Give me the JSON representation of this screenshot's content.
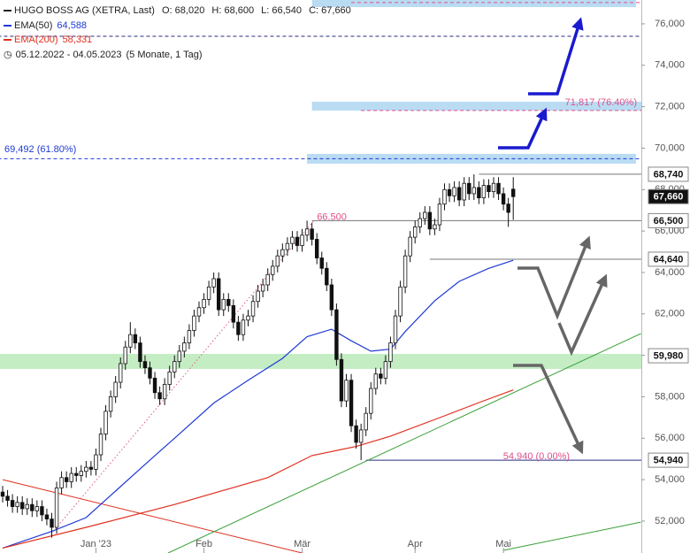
{
  "chart_data": {
    "type": "candlestick",
    "title": "HUGO BOSS AG (XETRA, Last)",
    "quote": [
      {
        "value": 68020,
        "label": "O: 68,020"
      },
      {
        "value": 68600,
        "label": "H: 68,600"
      },
      {
        "value": 66540,
        "label": "L: 66,540"
      },
      {
        "value": 67660,
        "label": "C: 67,660"
      }
    ],
    "period": "05.12.2022 - 04.05.2023",
    "period_note": "(5 Monate, 1 Tag)",
    "categories": [
      null,
      null,
      null,
      null,
      null,
      null,
      null,
      null,
      null,
      null,
      null,
      null,
      null,
      null,
      null,
      null,
      null,
      null,
      null,
      "Jan '23",
      null,
      null,
      null,
      null,
      null,
      null,
      null,
      null,
      null,
      null,
      null,
      null,
      null,
      null,
      null,
      null,
      null,
      null,
      null,
      null,
      null,
      "Feb",
      null,
      null,
      null,
      null,
      null,
      null,
      null,
      null,
      null,
      null,
      null,
      null,
      null,
      null,
      null,
      null,
      null,
      null,
      null,
      "Mär",
      null,
      null,
      null,
      null,
      null,
      null,
      null,
      null,
      null,
      null,
      null,
      null,
      null,
      null,
      null,
      null,
      null,
      null,
      null,
      null,
      null,
      null,
      "Apr",
      null,
      null,
      null,
      null,
      null,
      null,
      null,
      null,
      null,
      null,
      null,
      null,
      null,
      null,
      null,
      null,
      null,
      "Mai",
      null,
      null
    ],
    "open": [
      53400,
      53200,
      53000,
      52700,
      52900,
      52600,
      52800,
      52500,
      52700,
      52300,
      52100,
      51700,
      53600,
      54100,
      53900,
      54300,
      54200,
      54400,
      54600,
      54500,
      55200,
      56200,
      57300,
      58000,
      58700,
      59600,
      60400,
      61000,
      60600,
      59700,
      59400,
      58900,
      58200,
      57900,
      58600,
      59200,
      59700,
      60200,
      60600,
      61200,
      61900,
      62300,
      62700,
      63300,
      63700,
      62200,
      62700,
      62400,
      61600,
      61000,
      61700,
      61900,
      62600,
      63100,
      63400,
      63900,
      64300,
      64800,
      65100,
      65400,
      65700,
      65300,
      65800,
      66100,
      65600,
      64700,
      64200,
      63400,
      62200,
      59800,
      57800,
      58800,
      56600,
      55800,
      56400,
      57200,
      58400,
      59100,
      58900,
      59700,
      60600,
      61900,
      63300,
      64800,
      65700,
      66200,
      66600,
      66900,
      66100,
      66300,
      67300,
      68000,
      67700,
      68100,
      67500,
      68300,
      67800,
      68100,
      67600,
      68200,
      67900,
      68300,
      67800,
      67300,
      68020
    ],
    "high": [
      53700,
      53500,
      53300,
      53200,
      53200,
      53100,
      53100,
      53000,
      53000,
      52600,
      52400,
      53900,
      54400,
      54400,
      54600,
      54600,
      54700,
      54900,
      54900,
      55500,
      56500,
      57600,
      58300,
      59000,
      59900,
      60700,
      61600,
      61300,
      60900,
      60000,
      59700,
      59200,
      58500,
      58900,
      59500,
      60000,
      60500,
      60900,
      61500,
      62200,
      62600,
      63000,
      63600,
      64000,
      64000,
      63000,
      63000,
      62700,
      61900,
      62000,
      62200,
      62900,
      63400,
      63700,
      64200,
      64600,
      65100,
      65400,
      65700,
      66000,
      66000,
      66100,
      66500,
      66400,
      65900,
      65000,
      64500,
      63700,
      62500,
      60100,
      59100,
      59100,
      56900,
      56700,
      57500,
      58700,
      59400,
      59400,
      60000,
      60900,
      62200,
      63600,
      65100,
      66000,
      66500,
      66900,
      67200,
      67200,
      66600,
      67600,
      68300,
      68300,
      68400,
      68400,
      68600,
      68600,
      68740,
      68400,
      68500,
      68500,
      68600,
      68600,
      68100,
      67600,
      68600
    ],
    "low": [
      52900,
      52700,
      52400,
      52400,
      52300,
      52300,
      52200,
      52200,
      52000,
      51800,
      51200,
      51400,
      53300,
      53600,
      53600,
      53900,
      53900,
      54100,
      54200,
      54200,
      54900,
      55900,
      57000,
      57700,
      58400,
      59300,
      60100,
      60300,
      59400,
      59100,
      58600,
      57900,
      57600,
      57600,
      58300,
      58900,
      59400,
      59900,
      60300,
      60900,
      61600,
      62000,
      62400,
      63000,
      61900,
      61900,
      62100,
      61300,
      60700,
      60700,
      61400,
      61600,
      62300,
      62800,
      63100,
      63600,
      64000,
      64500,
      64800,
      65100,
      65000,
      65000,
      65500,
      65300,
      64400,
      63900,
      63100,
      61900,
      59500,
      57500,
      57500,
      56300,
      55500,
      54940,
      56100,
      56900,
      58100,
      58600,
      58600,
      59400,
      60300,
      61600,
      63000,
      64500,
      65400,
      65900,
      66300,
      65800,
      65800,
      66000,
      67000,
      67400,
      67400,
      67200,
      67200,
      67500,
      67500,
      67300,
      67300,
      67600,
      67600,
      67500,
      67000,
      66200,
      66540
    ],
    "close": [
      53200,
      53000,
      52700,
      52900,
      52600,
      52800,
      52500,
      52700,
      52300,
      52100,
      51700,
      53600,
      54100,
      53900,
      54300,
      54200,
      54400,
      54600,
      54500,
      55200,
      56200,
      57300,
      58000,
      58700,
      59600,
      60400,
      61000,
      60600,
      59700,
      59400,
      58900,
      58200,
      57900,
      58600,
      59200,
      59700,
      60200,
      60600,
      61200,
      61900,
      62300,
      62700,
      63300,
      63700,
      62200,
      62700,
      62400,
      61600,
      61000,
      61700,
      61900,
      62600,
      63100,
      63400,
      63900,
      64300,
      64800,
      65100,
      65400,
      65700,
      65300,
      65800,
      66100,
      65600,
      64700,
      64200,
      63400,
      62200,
      59800,
      57800,
      58800,
      56600,
      55800,
      56400,
      57200,
      58400,
      59100,
      58900,
      59700,
      60600,
      61900,
      63300,
      64800,
      65700,
      66200,
      66600,
      66900,
      66100,
      66300,
      67300,
      68000,
      67700,
      68100,
      67500,
      68300,
      67800,
      68100,
      67600,
      68200,
      67900,
      68300,
      67800,
      67300,
      66900,
      67660
    ],
    "series": [
      {
        "name": "EMA(50)",
        "color": "#1f3ad6",
        "last": {
          "value": 64588,
          "label": "64,588"
        },
        "x": [
          0,
          10,
          17,
          23,
          30,
          35,
          43,
          50,
          57,
          62,
          67,
          71,
          75,
          79,
          82,
          88,
          93,
          99,
          104
        ],
        "values": [
          50700,
          51500,
          52170,
          53450,
          54950,
          56000,
          57700,
          58800,
          59850,
          60900,
          61260,
          60700,
          60200,
          60300,
          61150,
          62630,
          63570,
          64200,
          64588
        ]
      },
      {
        "name": "EMA(200)",
        "color": "#e0301e",
        "last": {
          "value": 58331,
          "label": "58,331"
        },
        "x": [
          0,
          17,
          35,
          54,
          63,
          72,
          79,
          90,
          97,
          104
        ],
        "values": [
          50700,
          51700,
          52800,
          54100,
          55160,
          55600,
          56100,
          57080,
          57720,
          58331
        ]
      }
    ],
    "ylim": [
      50460,
      77150
    ],
    "yticks": [
      {
        "value": 52000,
        "label": "52,000"
      },
      {
        "value": 54000,
        "label": "54,000"
      },
      {
        "value": 56000,
        "label": "56,000"
      },
      {
        "value": 58000,
        "label": "58,000"
      },
      {
        "value": 60000,
        "label": "60,000"
      },
      {
        "value": 62000,
        "label": "62,000"
      },
      {
        "value": 64000,
        "label": "64,000"
      },
      {
        "value": 66000,
        "label": "66,000"
      },
      {
        "value": 68000,
        "label": "68,000"
      },
      {
        "value": 70000,
        "label": "70,000"
      },
      {
        "value": 72000,
        "label": "72,000"
      },
      {
        "value": 74000,
        "label": "74,000"
      },
      {
        "value": 76000,
        "label": "76,000"
      }
    ],
    "zones": [
      {
        "from": 69252,
        "to": 69722,
        "start": 62,
        "end": 129,
        "color": "#b9dcf3"
      },
      {
        "from": 71815,
        "to": 72242,
        "start": 63,
        "end": 131,
        "color": "#b9dcf3"
      },
      {
        "from": 76810,
        "to": 77300,
        "start": 63,
        "end": 129,
        "color": "#b9dcf3"
      },
      {
        "from": 59343,
        "to": 60069,
        "start": -1,
        "end": 131,
        "color": "#c4edc4"
      }
    ],
    "fib_lines": [
      {
        "value": 69492,
        "label": "69,492 (61.80%)",
        "color": "#1f3ad6",
        "start": -1
      },
      {
        "value": 71817,
        "label": "71,817 (76.40%)",
        "color": "#e0508a",
        "start": 73
      },
      {
        "value": 75400,
        "color": "#2a2a80",
        "start": -1
      },
      {
        "value": 77025,
        "color": "#e0508a",
        "start": 71
      }
    ],
    "annotations": [
      {
        "text": "66.500",
        "value": 66500,
        "x": 64,
        "color": "#e0508a"
      },
      {
        "text": "54,940 (0.00%)",
        "value": 54940,
        "x": 115.5,
        "color": "#e0508a"
      }
    ],
    "price_labels": [
      {
        "value": 68740,
        "label": "68,740",
        "from": 97
      },
      {
        "value": 67660,
        "label": "67,660",
        "highlight": true
      },
      {
        "value": 66500,
        "label": "66,500",
        "from": 63
      },
      {
        "value": 64640,
        "label": "64,640",
        "from": 87
      },
      {
        "value": 59980,
        "label": "59,980"
      },
      {
        "value": 54940,
        "label": "54,940",
        "from": 74
      }
    ],
    "trendlines": [
      {
        "color": "#e0301e",
        "points": [
          [
            0,
            54000
          ],
          [
            62,
            50400
          ]
        ]
      },
      {
        "color": "#3aa03a",
        "points": [
          [
            33.7,
            50460
          ],
          [
            130,
            61050
          ]
        ]
      },
      {
        "color": "#3aa03a",
        "points": [
          [
            102,
            50590
          ],
          [
            130,
            51950
          ]
        ]
      },
      {
        "color": "#e05a7a",
        "dotted": true,
        "points": [
          [
            10.3,
            51500
          ],
          [
            63.4,
            66500
          ]
        ]
      }
    ]
  }
}
